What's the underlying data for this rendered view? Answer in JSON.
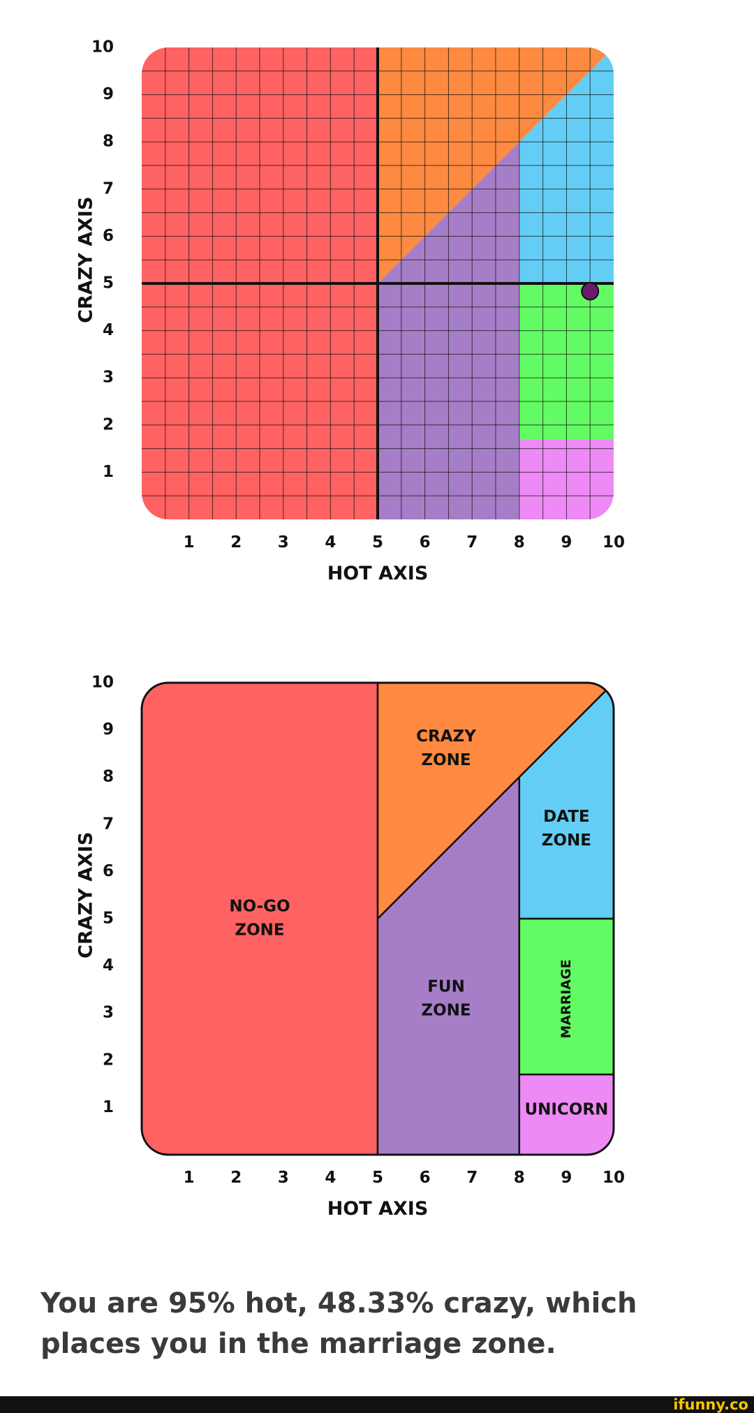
{
  "chart_data": [
    {
      "type": "area",
      "variant": "grid",
      "xlabel": "HOT AXIS",
      "ylabel": "CRAZY AXIS",
      "xlim": [
        0,
        10
      ],
      "ylim": [
        0,
        10
      ],
      "x_ticks": [
        "1",
        "2",
        "3",
        "4",
        "5",
        "6",
        "7",
        "8",
        "9",
        "10"
      ],
      "y_ticks": [
        "1",
        "2",
        "3",
        "4",
        "5",
        "6",
        "7",
        "8",
        "9",
        "10"
      ],
      "grid": true,
      "grid_step": 0.5,
      "reference_lines": {
        "x": 5,
        "y": 5
      },
      "zones": [
        {
          "id": "no-go",
          "color": "#fe6262",
          "polygon": [
            [
              0,
              0
            ],
            [
              5,
              0
            ],
            [
              5,
              10
            ],
            [
              0,
              10
            ]
          ]
        },
        {
          "id": "crazy",
          "color": "#fd8a40",
          "polygon": [
            [
              5,
              5
            ],
            [
              5,
              10
            ],
            [
              10,
              10
            ]
          ]
        },
        {
          "id": "fun",
          "color": "#a67ec7",
          "polygon": [
            [
              5,
              0
            ],
            [
              8,
              0
            ],
            [
              8,
              8
            ],
            [
              5,
              5
            ]
          ]
        },
        {
          "id": "date",
          "color": "#63cdf5",
          "polygon": [
            [
              8,
              5
            ],
            [
              10,
              5
            ],
            [
              10,
              10
            ],
            [
              8,
              8
            ]
          ]
        },
        {
          "id": "marriage",
          "color": "#63fb63",
          "polygon": [
            [
              8,
              1.7
            ],
            [
              10,
              1.7
            ],
            [
              10,
              5
            ],
            [
              8,
              5
            ]
          ]
        },
        {
          "id": "unicorn",
          "color": "#ee8af5",
          "polygon": [
            [
              8,
              0
            ],
            [
              10,
              0
            ],
            [
              10,
              1.7
            ],
            [
              8,
              1.7
            ]
          ]
        }
      ],
      "marker": {
        "x": 9.5,
        "y": 4.8333,
        "color": "#6b1a6e"
      }
    },
    {
      "type": "area",
      "variant": "labeled",
      "xlabel": "HOT AXIS",
      "ylabel": "CRAZY AXIS",
      "xlim": [
        0,
        10
      ],
      "ylim": [
        0,
        10
      ],
      "x_ticks": [
        "1",
        "2",
        "3",
        "4",
        "5",
        "6",
        "7",
        "8",
        "9",
        "10"
      ],
      "y_ticks": [
        "1",
        "2",
        "3",
        "4",
        "5",
        "6",
        "7",
        "8",
        "9",
        "10"
      ],
      "grid": false,
      "zones": [
        {
          "id": "no-go",
          "color": "#fe6262",
          "polygon": [
            [
              0,
              0
            ],
            [
              5,
              0
            ],
            [
              5,
              10
            ],
            [
              0,
              10
            ]
          ],
          "label": [
            "NO-GO",
            "ZONE"
          ],
          "label_at": [
            2.5,
            5
          ]
        },
        {
          "id": "crazy",
          "color": "#fd8a40",
          "polygon": [
            [
              5,
              5
            ],
            [
              5,
              10
            ],
            [
              10,
              10
            ]
          ],
          "label": [
            "CRAZY",
            "ZONE"
          ],
          "label_at": [
            6.45,
            8.6
          ]
        },
        {
          "id": "fun",
          "color": "#a67ec7",
          "polygon": [
            [
              5,
              0
            ],
            [
              8,
              0
            ],
            [
              8,
              8
            ],
            [
              5,
              5
            ]
          ],
          "label": [
            "FUN",
            "ZONE"
          ],
          "label_at": [
            6.45,
            3.3
          ]
        },
        {
          "id": "date",
          "color": "#63cdf5",
          "polygon": [
            [
              8,
              5
            ],
            [
              10,
              5
            ],
            [
              10,
              10
            ],
            [
              8,
              8
            ]
          ],
          "label": [
            "DATE",
            "ZONE"
          ],
          "label_at": [
            9,
            6.9
          ]
        },
        {
          "id": "marriage",
          "color": "#63fb63",
          "polygon": [
            [
              8,
              1.7
            ],
            [
              10,
              1.7
            ],
            [
              10,
              5
            ],
            [
              8,
              5
            ]
          ],
          "label": [
            "MARRIAGE"
          ],
          "label_at": [
            9,
            3.3
          ],
          "label_rotated": true
        },
        {
          "id": "unicorn",
          "color": "#ee8af5",
          "polygon": [
            [
              8,
              0
            ],
            [
              10,
              0
            ],
            [
              10,
              1.7
            ],
            [
              8,
              1.7
            ]
          ],
          "label": [
            "UNICORN"
          ],
          "label_at": [
            9,
            0.95
          ]
        }
      ]
    }
  ],
  "caption": "You are 95% hot, 48.33% crazy, which places you in the marriage zone.",
  "footer": {
    "logo": "ifunny.co",
    "bar_color": "#111111",
    "logo_color": "#f5c400"
  }
}
